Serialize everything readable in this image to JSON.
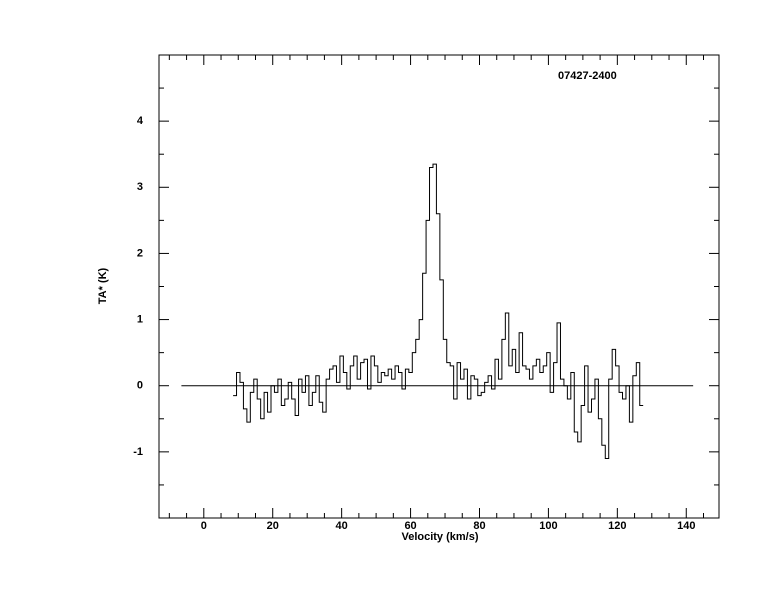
{
  "chart_data": {
    "type": "step",
    "title": "07427-2400",
    "xlabel": "Velocity (km/s)",
    "ylabel": "TA* (K)",
    "color": "#000000",
    "xlim": [
      -13,
      149.5
    ],
    "ylim": [
      -2,
      5
    ],
    "xticks": [
      0,
      20,
      40,
      60,
      80,
      100,
      120,
      140
    ],
    "yticks": [
      -1,
      0,
      1,
      2,
      3,
      4
    ],
    "xminorticks": [
      -10,
      -5,
      5,
      10,
      15,
      25,
      30,
      35,
      45,
      50,
      55,
      65,
      70,
      75,
      85,
      90,
      95,
      105,
      110,
      115,
      125,
      130,
      135,
      145
    ],
    "yminorticks": [
      -1.5,
      -0.5,
      0.5,
      1.5,
      2.5,
      3.5,
      4.5
    ],
    "baseline": {
      "y": 0,
      "x": [
        -6.5,
        142
      ]
    },
    "x": [
      9,
      10,
      11,
      12,
      13,
      14,
      15,
      16,
      17,
      18,
      19,
      20,
      21,
      22,
      23,
      24,
      25,
      26,
      27,
      28,
      29,
      30,
      31,
      32,
      33,
      34,
      35,
      36,
      37,
      38,
      39,
      40,
      41,
      42,
      43,
      44,
      45,
      46,
      47,
      48,
      49,
      50,
      51,
      52,
      53,
      54,
      55,
      56,
      57,
      58,
      59,
      60,
      61,
      62,
      63,
      64,
      65,
      66,
      67,
      68,
      69,
      70,
      71,
      72,
      73,
      74,
      75,
      76,
      77,
      78,
      79,
      80,
      81,
      82,
      83,
      84,
      85,
      86,
      87,
      88,
      89,
      90,
      91,
      92,
      93,
      94,
      95,
      96,
      97,
      98,
      99,
      100,
      101,
      102,
      103,
      104,
      105,
      106,
      107,
      108,
      109,
      110,
      111,
      112,
      113,
      114,
      115,
      116,
      117,
      118,
      119,
      120,
      121,
      122,
      123,
      124,
      125,
      126,
      127
    ],
    "values": [
      -0.15,
      0.2,
      0.05,
      -0.35,
      -0.55,
      -0.1,
      0.1,
      -0.2,
      -0.5,
      -0.1,
      -0.4,
      0.0,
      -0.1,
      0.1,
      -0.3,
      -0.2,
      0.05,
      -0.2,
      -0.45,
      0.1,
      -0.1,
      0.15,
      -0.3,
      -0.1,
      0.15,
      -0.25,
      -0.4,
      0.1,
      0.25,
      0.3,
      0.05,
      0.45,
      0.2,
      -0.05,
      0.3,
      0.45,
      0.1,
      0.35,
      0.4,
      -0.05,
      0.45,
      0.3,
      0.05,
      0.2,
      0.15,
      0.25,
      0.1,
      0.3,
      0.2,
      -0.05,
      0.25,
      0.2,
      0.5,
      0.7,
      1.0,
      1.7,
      2.5,
      3.3,
      3.35,
      2.6,
      1.6,
      0.7,
      0.35,
      0.3,
      -0.2,
      0.35,
      0.1,
      0.25,
      -0.2,
      0.15,
      0.1,
      -0.15,
      -0.1,
      0.05,
      0.15,
      -0.05,
      0.4,
      0.1,
      0.7,
      1.1,
      0.3,
      0.55,
      0.2,
      0.8,
      0.3,
      0.25,
      0.1,
      0.3,
      0.4,
      0.2,
      0.3,
      0.5,
      -0.1,
      0.35,
      0.95,
      0.1,
      0.0,
      -0.2,
      0.2,
      -0.7,
      -0.85,
      -0.3,
      0.3,
      -0.4,
      -0.2,
      0.1,
      -0.5,
      -0.9,
      -1.1,
      0.1,
      0.55,
      0.3,
      -0.1,
      -0.2,
      0.0,
      -0.55,
      0.15,
      0.35,
      -0.3
    ]
  }
}
